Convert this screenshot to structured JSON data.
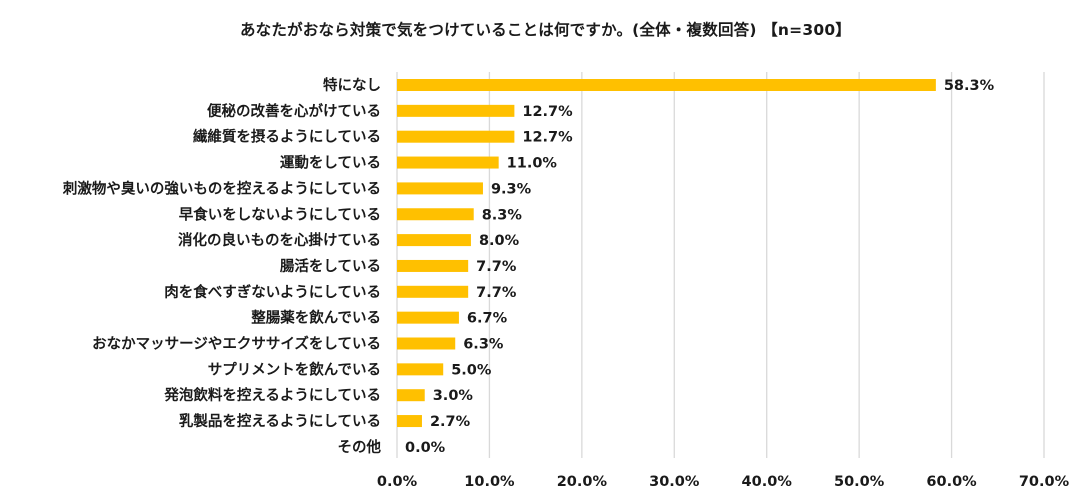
{
  "chart_data": {
    "type": "bar",
    "orientation": "horizontal",
    "title": "あなたがおなら対策で気をつけていることは何ですか。(全体・複数回答) 【n=300】",
    "categories": [
      "特になし",
      "便秘の改善を心がけている",
      "繊維質を摂るようにしている",
      "運動をしている",
      "刺激物や臭いの強いものを控えるようにしている",
      "早食いをしないようにしている",
      "消化の良いものを心掛けている",
      "腸活をしている",
      "肉を食べすぎないようにしている",
      "整腸薬を飲んでいる",
      "おなかマッサージやエクササイズをしている",
      "サプリメントを飲んでいる",
      "発泡飲料を控えるようにしている",
      "乳製品を控えるようにしている",
      "その他"
    ],
    "values": [
      58.3,
      12.7,
      12.7,
      11.0,
      9.3,
      8.3,
      8.0,
      7.7,
      7.7,
      6.7,
      6.3,
      5.0,
      3.0,
      2.7,
      0.0
    ],
    "value_labels": [
      "58.3%",
      "12.7%",
      "12.7%",
      "11.0%",
      "9.3%",
      "8.3%",
      "8.0%",
      "7.7%",
      "7.7%",
      "6.7%",
      "6.3%",
      "5.0%",
      "3.0%",
      "2.7%",
      "0.0%"
    ],
    "xlim": [
      0,
      70
    ],
    "x_ticks": [
      0,
      10,
      20,
      30,
      40,
      50,
      60,
      70
    ],
    "x_tick_labels": [
      "0.0%",
      "10.0%",
      "20.0%",
      "30.0%",
      "40.0%",
      "50.0%",
      "60.0%",
      "70.0%"
    ],
    "xlabel": "",
    "ylabel": "",
    "grid": true,
    "bar_color": "#FFC000",
    "grid_color": "#D9D9D9"
  }
}
